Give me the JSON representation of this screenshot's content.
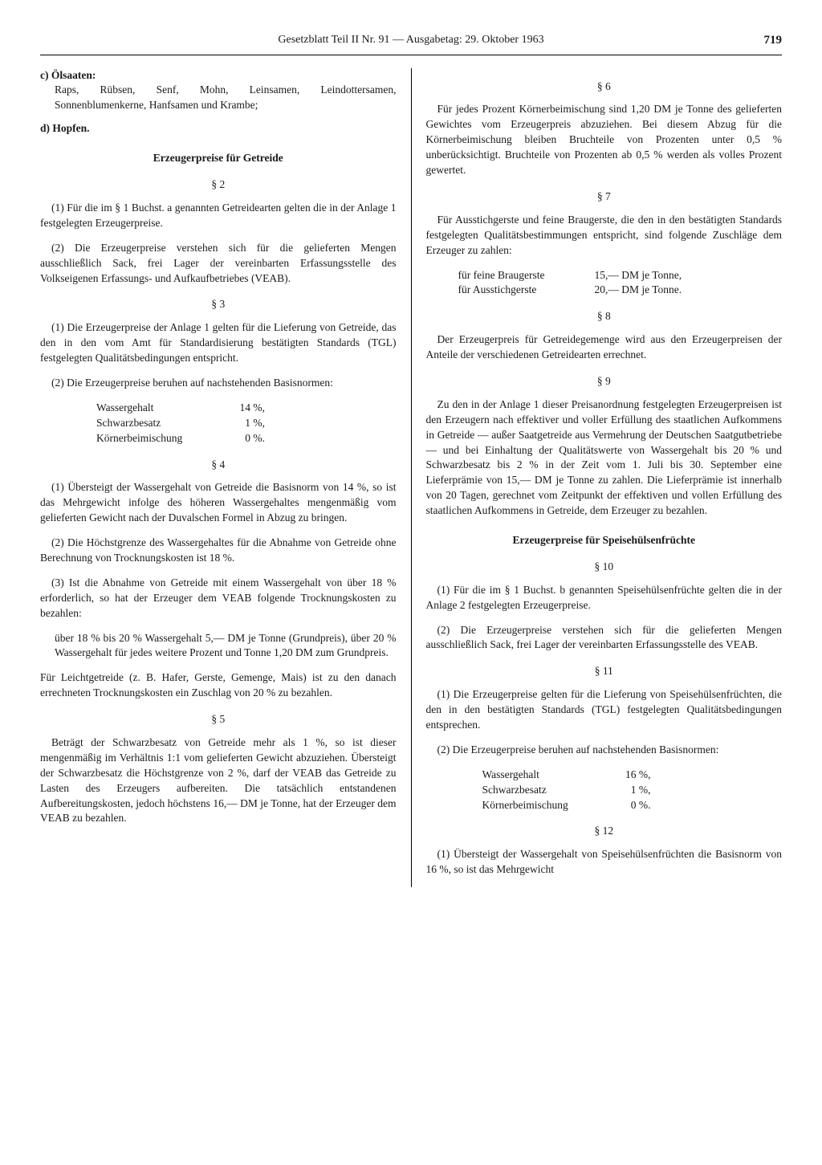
{
  "header": {
    "title": "Gesetzblatt Teil II Nr. 91 — Ausgabetag: 29. Oktober 1963",
    "page_number": "719"
  },
  "left_column": {
    "item_c": {
      "label": "c) Ölsaaten:",
      "body": "Raps, Rübsen, Senf, Mohn, Leinsamen, Leindottersamen, Sonnenblumenkerne, Hanfsamen und Krambe;"
    },
    "item_d": {
      "label": "d) Hopfen."
    },
    "section1_title": "Erzeugerpreise für Getreide",
    "s2": {
      "num": "§ 2",
      "p1": "(1) Für die im § 1 Buchst. a genannten Getreidearten gelten die in der Anlage 1 festgelegten Erzeugerpreise.",
      "p2": "(2) Die Erzeugerpreise verstehen sich für die gelieferten Mengen ausschließlich Sack, frei Lager der vereinbarten Erfassungsstelle des Volkseigenen Erfassungs- und Aufkaufbetriebes (VEAB)."
    },
    "s3": {
      "num": "§ 3",
      "p1": "(1) Die Erzeugerpreise der Anlage 1 gelten für die Lieferung von Getreide, das den in den vom Amt für Standardisierung bestätigten Standards (TGL) festgelegten Qualitätsbedingungen entspricht.",
      "p2": "(2) Die Erzeugerpreise beruhen auf nachstehenden Basisnormen:",
      "norms": [
        {
          "label": "Wassergehalt",
          "val": "14 %,"
        },
        {
          "label": "Schwarzbesatz",
          "val": "1 %,"
        },
        {
          "label": "Körnerbeimischung",
          "val": "0 %."
        }
      ]
    },
    "s4": {
      "num": "§ 4",
      "p1": "(1) Übersteigt der Wassergehalt von Getreide die Basisnorm von 14 %, so ist das Mehrgewicht infolge des höheren Wassergehaltes mengenmäßig vom gelieferten Gewicht nach der Duvalschen Formel in Abzug zu bringen.",
      "p2": "(2) Die Höchstgrenze des Wassergehaltes für die Abnahme von Getreide ohne Berechnung von Trocknungskosten ist 18 %.",
      "p3": "(3) Ist die Abnahme von Getreide mit einem Wassergehalt von über 18 % erforderlich, so hat der Erzeuger dem VEAB folgende Trocknungskosten zu bezahlen:",
      "p3_block": "über 18 % bis 20 % Wassergehalt 5,— DM je Tonne (Grundpreis), über 20 % Wassergehalt für jedes weitere Prozent und Tonne 1,20 DM zum Grundpreis.",
      "p4": "Für Leichtgetreide (z. B. Hafer, Gerste, Gemenge, Mais) ist zu den danach errechneten Trocknungskosten ein Zuschlag von 20 % zu bezahlen."
    },
    "s5": {
      "num": "§ 5",
      "p1": "Beträgt der Schwarzbesatz von Getreide mehr als 1 %, so ist dieser mengenmäßig im Verhältnis 1:1 vom gelieferten Gewicht abzuziehen. Übersteigt der Schwarzbesatz die Höchstgrenze von 2 %, darf der VEAB das Getreide zu Lasten des Erzeugers aufbereiten. Die tatsächlich entstandenen Aufbereitungskosten, jedoch höchstens 16,— DM je Tonne, hat der Erzeuger dem VEAB zu bezahlen."
    }
  },
  "right_column": {
    "s6": {
      "num": "§ 6",
      "p1": "Für jedes Prozent Körnerbeimischung sind 1,20 DM je Tonne des gelieferten Gewichtes vom Erzeugerpreis abzuziehen. Bei diesem Abzug für die Körnerbeimischung bleiben Bruchteile von Prozenten unter 0,5 % unberücksichtigt. Bruchteile von Prozenten ab 0,5 % werden als volles Prozent gewertet."
    },
    "s7": {
      "num": "§ 7",
      "p1": "Für Ausstichgerste und feine Braugerste, die den in den bestätigten Standards festgelegten Qualitätsbestimmungen entspricht, sind folgende Zuschläge dem Erzeuger zu zahlen:",
      "prices": [
        {
          "label": "für feine Braugerste",
          "val": "15,— DM je Tonne,"
        },
        {
          "label": "für Ausstichgerste",
          "val": "20,— DM je Tonne."
        }
      ]
    },
    "s8": {
      "num": "§ 8",
      "p1": "Der Erzeugerpreis für Getreidegemenge wird aus den Erzeugerpreisen der Anteile der verschiedenen Getreidearten errechnet."
    },
    "s9": {
      "num": "§ 9",
      "p1": "Zu den in der Anlage 1 dieser Preisanordnung festgelegten Erzeugerpreisen ist den Erzeugern nach effektiver und voller Erfüllung des staatlichen Aufkommens in Getreide — außer Saatgetreide aus Vermehrung der Deutschen Saatgutbetriebe — und bei Einhaltung der Qualitätswerte von Wassergehalt bis 20 % und Schwarzbesatz bis 2 % in der Zeit vom 1. Juli bis 30. September eine Lieferprämie von 15,— DM je Tonne zu zahlen. Die Lieferprämie ist innerhalb von 20 Tagen, gerechnet vom Zeitpunkt der effektiven und vollen Erfüllung des staatlichen Aufkommens in Getreide, dem Erzeuger zu bezahlen."
    },
    "section2_title": "Erzeugerpreise für Speisehülsenfrüchte",
    "s10": {
      "num": "§ 10",
      "p1": "(1) Für die im § 1 Buchst. b genannten Speisehülsenfrüchte gelten die in der Anlage 2 festgelegten Erzeugerpreise.",
      "p2": "(2) Die Erzeugerpreise verstehen sich für die gelieferten Mengen ausschließlich Sack, frei Lager der vereinbarten Erfassungsstelle des VEAB."
    },
    "s11": {
      "num": "§ 11",
      "p1": "(1) Die Erzeugerpreise gelten für die Lieferung von Speisehülsenfrüchten, die den in den bestätigten Standards (TGL) festgelegten Qualitätsbedingungen entsprechen.",
      "p2": "(2) Die Erzeugerpreise beruhen auf nachstehenden Basisnormen:",
      "norms": [
        {
          "label": "Wassergehalt",
          "val": "16 %,"
        },
        {
          "label": "Schwarzbesatz",
          "val": "1 %,"
        },
        {
          "label": "Körnerbeimischung",
          "val": "0 %."
        }
      ]
    },
    "s12": {
      "num": "§ 12",
      "p1": "(1) Übersteigt der Wassergehalt von Speisehülsenfrüchten die Basisnorm von 16 %, so ist das Mehrgewicht"
    }
  }
}
